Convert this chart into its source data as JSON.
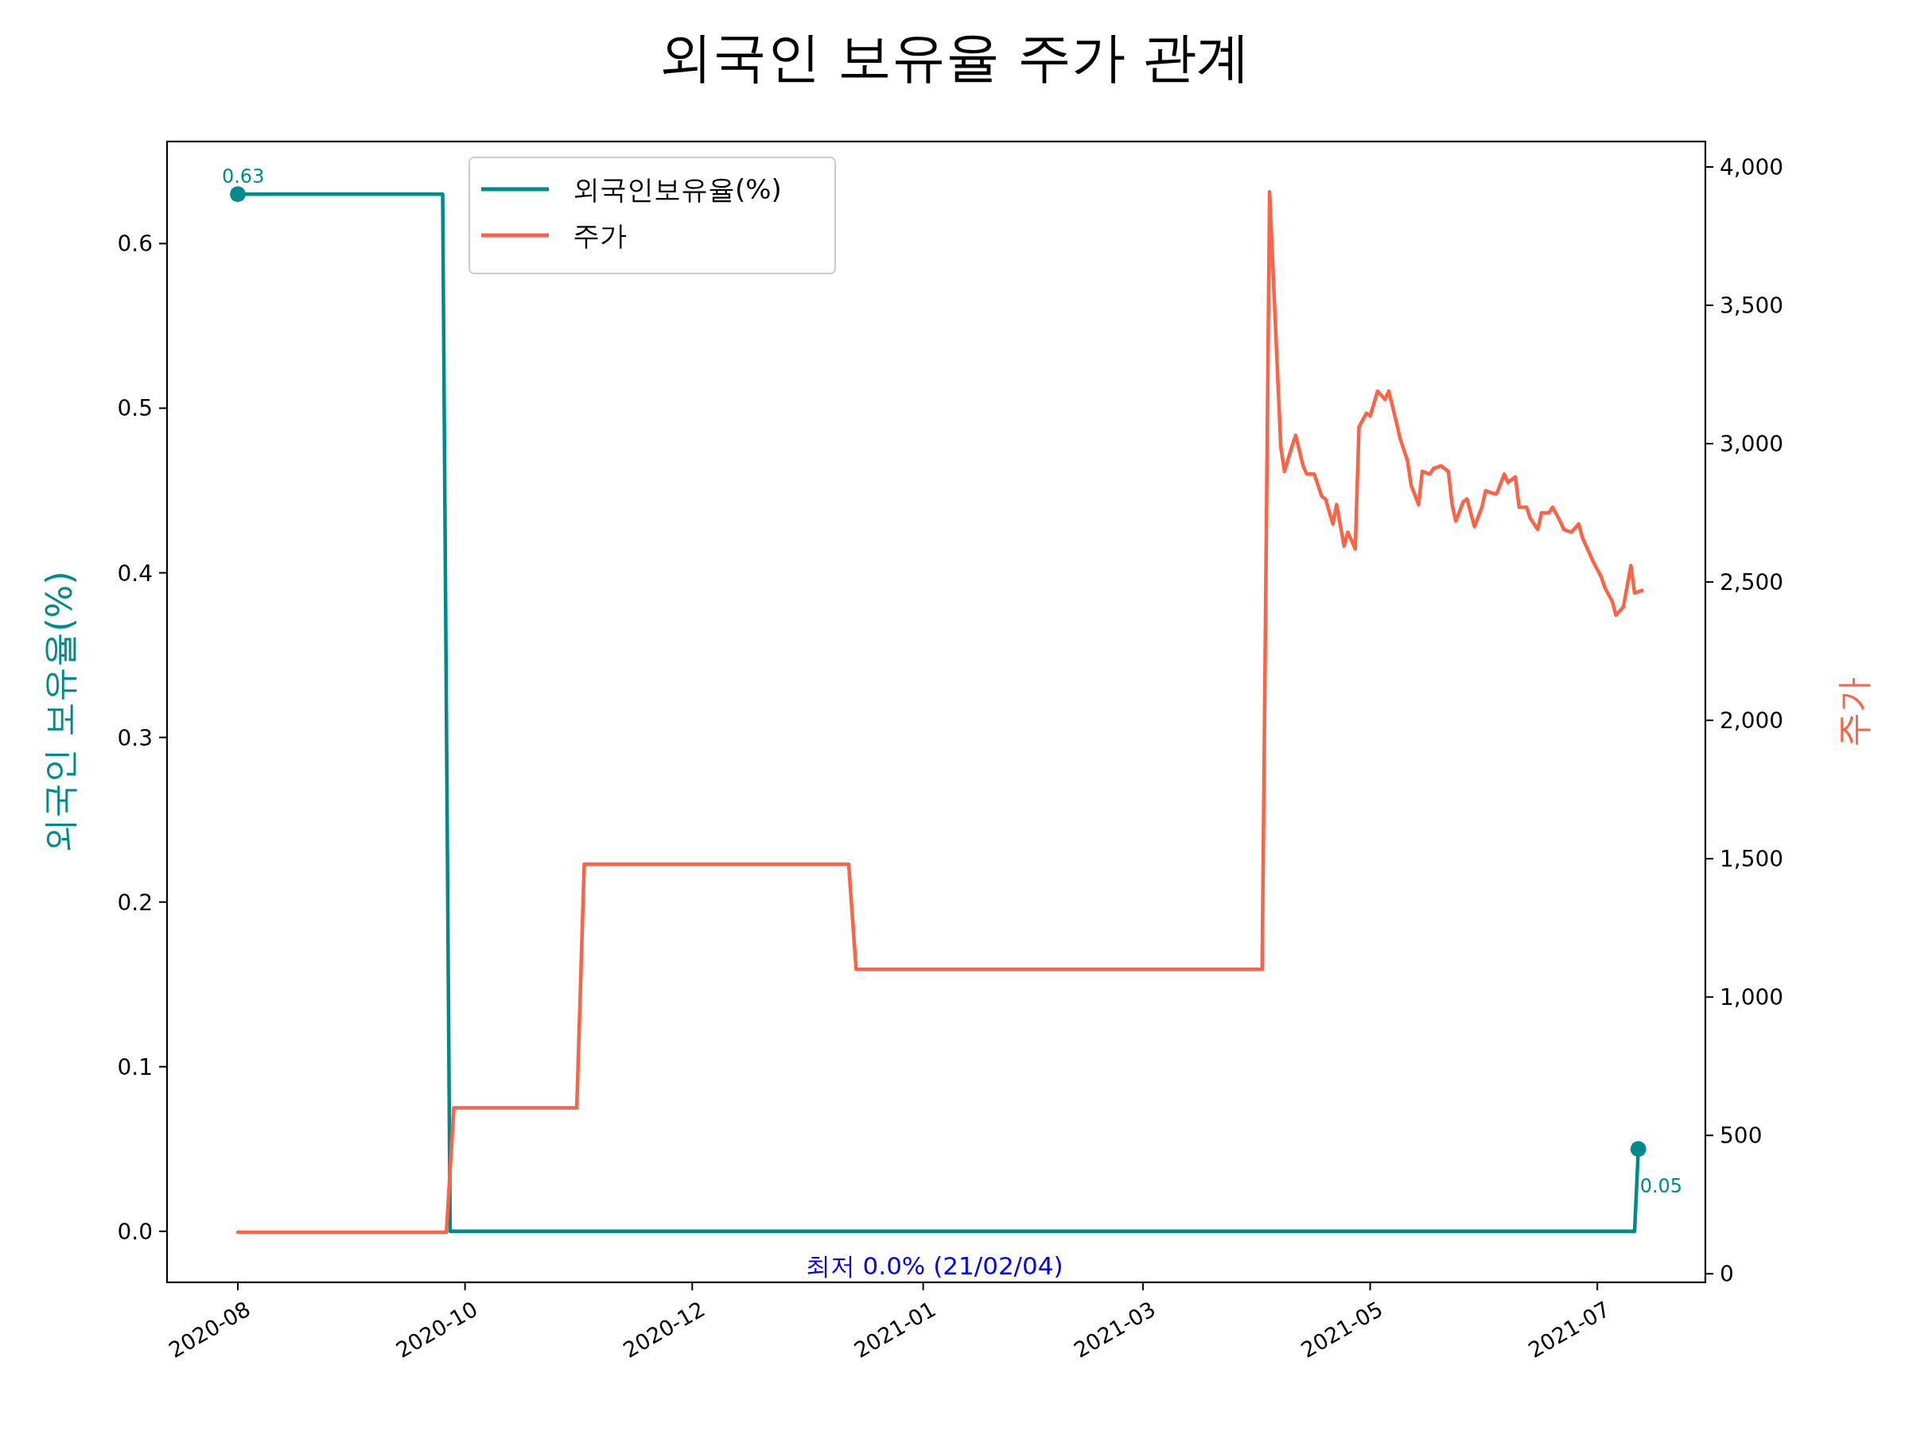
{
  "chart_data": {
    "type": "line",
    "title": "외국인 보유율 주가 관계",
    "ylabel": "외국인 보유율(%)",
    "y2label": "주가",
    "xlim": [
      "2020-07-13",
      "2021-08-30"
    ],
    "xticks": [
      {
        "value": "2020-08-01",
        "label": "2020-08"
      },
      {
        "value": "2020-10-01",
        "label": "2020-10"
      },
      {
        "value": "2020-12-01",
        "label": "2020-12"
      },
      {
        "value": "2021-02-01",
        "label": "2021-01"
      },
      {
        "value": "2021-04-01",
        "label": "2021-03"
      },
      {
        "value": "2021-06-01",
        "label": "2021-05"
      },
      {
        "value": "2021-08-01",
        "label": "2021-07"
      }
    ],
    "ylim": [
      -0.031,
      0.662
    ],
    "yticks": [
      {
        "value": 0,
        "label": "0.0"
      },
      {
        "value": 0.1,
        "label": "0.1"
      },
      {
        "value": 0.2,
        "label": "0.2"
      },
      {
        "value": 0.3,
        "label": "0.3"
      },
      {
        "value": 0.4,
        "label": "0.4"
      },
      {
        "value": 0.5,
        "label": "0.5"
      },
      {
        "value": 0.6,
        "label": "0.6"
      }
    ],
    "y2lim": [
      -31,
      4092
    ],
    "y2ticks": [
      0,
      500,
      {
        "value": 1000,
        "label": "1,000"
      },
      {
        "value": 1500,
        "label": "1,500"
      },
      {
        "value": 2000,
        "label": "2,000"
      },
      {
        "value": 2500,
        "label": "2,500"
      },
      {
        "value": 3000,
        "label": "3,000"
      },
      {
        "value": 3500,
        "label": "3,500"
      },
      {
        "value": 4000,
        "label": "4,000"
      }
    ],
    "grid": false,
    "legend": "top left",
    "line_style": "solid",
    "series": [
      {
        "name": "외국인보유율(%)",
        "color": "#008b8a",
        "x": [
          "2020-08-01",
          "2020-09-25",
          "2020-09-27",
          "2021-08-11",
          "2021-08-12"
        ],
        "values": [
          0.63,
          0.63,
          0,
          0,
          0.05
        ]
      },
      {
        "name": "주가",
        "color": "#ff6347",
        "axis": "y2",
        "x": [
          "2020-08-01",
          "2020-09-26",
          "2020-09-28",
          "2020-10-31",
          "2020-11-02",
          "2021-01-12",
          "2021-01-14",
          "2021-05-03",
          "2021-05-05",
          "2021-05-08",
          "2021-05-09",
          "2021-05-11",
          "2021-05-12",
          "2021-05-14",
          "2021-05-15",
          "2021-05-17",
          "2021-05-19",
          "2021-05-20",
          "2021-05-22",
          "2021-05-23",
          "2021-05-25",
          "2021-05-26",
          "2021-05-28",
          "2021-05-29",
          "2021-05-31",
          "2021-06-01",
          "2021-06-03",
          "2021-06-05",
          "2021-06-06",
          "2021-06-08",
          "2021-06-09",
          "2021-06-11",
          "2021-06-12",
          "2021-06-14",
          "2021-06-15",
          "2021-06-17",
          "2021-06-18",
          "2021-06-20",
          "2021-06-22",
          "2021-06-23",
          "2021-06-24",
          "2021-06-26",
          "2021-06-27",
          "2021-06-29",
          "2021-07-01",
          "2021-07-02",
          "2021-07-04",
          "2021-07-05",
          "2021-07-07",
          "2021-07-08",
          "2021-07-10",
          "2021-07-11",
          "2021-07-13",
          "2021-07-14",
          "2021-07-16",
          "2021-07-17",
          "2021-07-19",
          "2021-07-20",
          "2021-07-22",
          "2021-07-23",
          "2021-07-25",
          "2021-07-27",
          "2021-07-28",
          "2021-07-30",
          "2021-07-31",
          "2021-08-02",
          "2021-08-03",
          "2021-08-05",
          "2021-08-06",
          "2021-08-08",
          "2021-08-10",
          "2021-08-11",
          "2021-08-13"
        ],
        "values": [
          150,
          150,
          600,
          600,
          1480,
          1480,
          1100,
          1100,
          3910,
          2990,
          2900,
          2990,
          3030,
          2920,
          2890,
          2890,
          2810,
          2800,
          2710,
          2780,
          2630,
          2680,
          2620,
          3060,
          3110,
          3100,
          3190,
          3160,
          3190,
          3080,
          3020,
          2940,
          2850,
          2780,
          2900,
          2890,
          2910,
          2920,
          2900,
          2780,
          2720,
          2790,
          2800,
          2700,
          2770,
          2830,
          2820,
          2820,
          2890,
          2860,
          2880,
          2770,
          2770,
          2730,
          2690,
          2750,
          2750,
          2770,
          2720,
          2690,
          2680,
          2710,
          2660,
          2600,
          2570,
          2520,
          2480,
          2430,
          2380,
          2410,
          2560,
          2460,
          2470
        ]
      },
      {
        "type": "scatter",
        "color": "#008b8a",
        "marker": "circle",
        "x": [
          "2020-08-01",
          "2021-08-12"
        ],
        "values": [
          0.63,
          0.05
        ],
        "value_labels": [
          "0.63",
          "0.05"
        ]
      }
    ],
    "annotations": [
      {
        "text": "최저 0.0% (21/02/04)",
        "x": "2021-02-04",
        "y": 0
      }
    ]
  }
}
